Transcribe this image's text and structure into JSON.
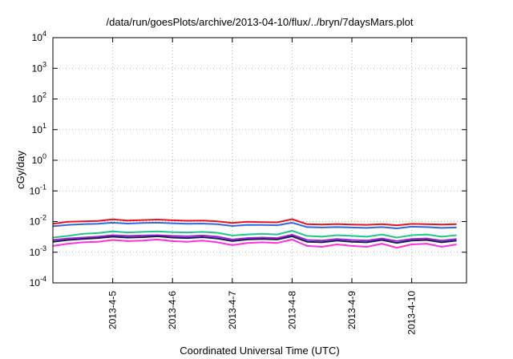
{
  "chart_data": {
    "type": "line",
    "title": "/data/run/goesPlots/archive/2013-04-10/flux/../bryn/7daysMars.plot",
    "xlabel": "Coordinated Universal Time (UTC)",
    "ylabel": "cGy/day",
    "yscale": "log",
    "ylim": [
      0.0001,
      10000
    ],
    "xlim": [
      "2013-04-04T00:00",
      "2013-04-10T22:00"
    ],
    "grid": true,
    "legend": "none",
    "yticks": [
      {
        "base": "10",
        "exp": "-4",
        "value": 0.0001
      },
      {
        "base": "10",
        "exp": "-3",
        "value": 0.001
      },
      {
        "base": "10",
        "exp": "-2",
        "value": 0.01
      },
      {
        "base": "10",
        "exp": "-1",
        "value": 0.1
      },
      {
        "base": "10",
        "exp": "0",
        "value": 1
      },
      {
        "base": "10",
        "exp": "1",
        "value": 10
      },
      {
        "base": "10",
        "exp": "2",
        "value": 100
      },
      {
        "base": "10",
        "exp": "3",
        "value": 1000
      },
      {
        "base": "10",
        "exp": "4",
        "value": 10000
      }
    ],
    "xticks": [
      {
        "label": "2013-4-5",
        "value": "2013-04-05T00:00"
      },
      {
        "label": "2013-4-6",
        "value": "2013-04-06T00:00"
      },
      {
        "label": "2013-4-7",
        "value": "2013-04-07T00:00"
      },
      {
        "label": "2013-4-8",
        "value": "2013-04-08T00:00"
      },
      {
        "label": "2013-4-9",
        "value": "2013-04-09T00:00"
      },
      {
        "label": "2013-4-10",
        "value": "2013-04-10T00:00"
      }
    ],
    "x": [
      "2013-04-04T00:00",
      "2013-04-04T06:00",
      "2013-04-04T12:00",
      "2013-04-04T18:00",
      "2013-04-05T00:00",
      "2013-04-05T06:00",
      "2013-04-05T12:00",
      "2013-04-05T18:00",
      "2013-04-06T00:00",
      "2013-04-06T06:00",
      "2013-04-06T12:00",
      "2013-04-06T18:00",
      "2013-04-07T00:00",
      "2013-04-07T06:00",
      "2013-04-07T12:00",
      "2013-04-07T18:00",
      "2013-04-08T00:00",
      "2013-04-08T06:00",
      "2013-04-08T12:00",
      "2013-04-08T18:00",
      "2013-04-09T00:00",
      "2013-04-09T06:00",
      "2013-04-09T12:00",
      "2013-04-09T18:00",
      "2013-04-10T00:00",
      "2013-04-10T06:00",
      "2013-04-10T12:00",
      "2013-04-10T18:00"
    ],
    "series": [
      {
        "color": "#e8141e",
        "values": [
          0.0085,
          0.0098,
          0.0102,
          0.0105,
          0.0118,
          0.0108,
          0.0112,
          0.0116,
          0.011,
          0.0106,
          0.0108,
          0.0102,
          0.009,
          0.0098,
          0.0096,
          0.0094,
          0.012,
          0.0082,
          0.008,
          0.0083,
          0.008,
          0.0078,
          0.0082,
          0.0076,
          0.0084,
          0.0082,
          0.008,
          0.0082
        ]
      },
      {
        "color": "#3366e6",
        "values": [
          0.007,
          0.0078,
          0.0082,
          0.0085,
          0.0092,
          0.0086,
          0.009,
          0.0092,
          0.0088,
          0.0085,
          0.0086,
          0.0082,
          0.0072,
          0.0078,
          0.0077,
          0.0076,
          0.0092,
          0.0066,
          0.0064,
          0.0066,
          0.0064,
          0.0062,
          0.0066,
          0.006,
          0.0068,
          0.0066,
          0.0062,
          0.0064
        ]
      },
      {
        "color": "#22c58c",
        "values": [
          0.003,
          0.0034,
          0.004,
          0.0042,
          0.0048,
          0.0044,
          0.0046,
          0.0048,
          0.0045,
          0.0044,
          0.0046,
          0.0043,
          0.0035,
          0.0038,
          0.004,
          0.0038,
          0.005,
          0.0034,
          0.0032,
          0.0036,
          0.0034,
          0.0032,
          0.0038,
          0.003,
          0.0036,
          0.0038,
          0.0032,
          0.0036
        ]
      },
      {
        "color": "#a020e0",
        "values": [
          0.0025,
          0.0028,
          0.003,
          0.0032,
          0.0036,
          0.0034,
          0.0035,
          0.0036,
          0.0034,
          0.0033,
          0.0035,
          0.0032,
          0.0026,
          0.0029,
          0.003,
          0.0029,
          0.0037,
          0.0025,
          0.0024,
          0.0027,
          0.0025,
          0.0024,
          0.0028,
          0.0023,
          0.0027,
          0.0028,
          0.0024,
          0.0027
        ]
      },
      {
        "color": "#1c1c50",
        "values": [
          0.0022,
          0.0025,
          0.0027,
          0.0029,
          0.0032,
          0.003,
          0.0031,
          0.0033,
          0.003,
          0.0029,
          0.0031,
          0.0028,
          0.0023,
          0.0026,
          0.0027,
          0.0026,
          0.0033,
          0.0022,
          0.0021,
          0.0024,
          0.0022,
          0.0021,
          0.0025,
          0.002,
          0.0024,
          0.0025,
          0.0021,
          0.0024
        ]
      },
      {
        "color": "#ff30e0",
        "values": [
          0.0016,
          0.0019,
          0.0021,
          0.0022,
          0.0025,
          0.0023,
          0.0024,
          0.0026,
          0.0023,
          0.0022,
          0.0024,
          0.0021,
          0.0017,
          0.002,
          0.0021,
          0.002,
          0.0026,
          0.0016,
          0.0015,
          0.0018,
          0.0016,
          0.0015,
          0.0019,
          0.0014,
          0.0018,
          0.0019,
          0.0015,
          0.0018
        ]
      }
    ]
  }
}
